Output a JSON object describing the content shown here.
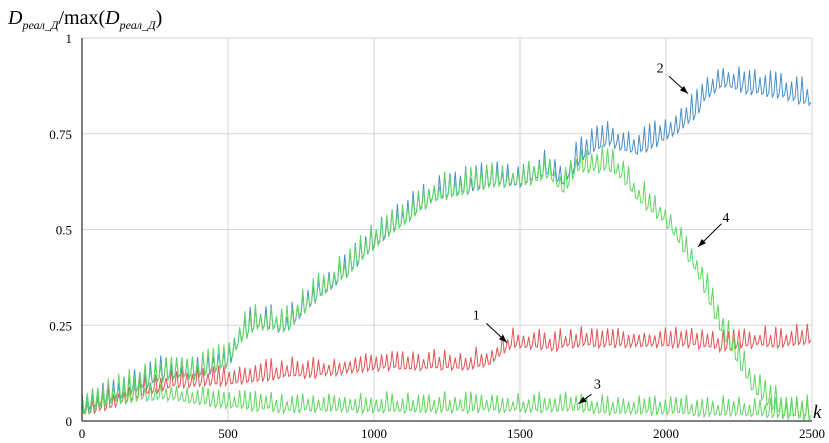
{
  "chart_data": {
    "type": "line",
    "ylabel": {
      "main": "D",
      "sub": "реал_Д",
      "ratio": "/max(",
      "main2": "D",
      "sub2": "реал_Д",
      "close": ")"
    },
    "xlabel": "k",
    "xlim": [
      0,
      2500
    ],
    "ylim": [
      0,
      1
    ],
    "x_ticks": [
      0,
      500,
      1000,
      1500,
      2000,
      2500
    ],
    "x_tick_labels": [
      "0",
      "500",
      "1000",
      "1500",
      "2000",
      "2500"
    ],
    "y_ticks": [
      0,
      0.25,
      0.5,
      0.75,
      1
    ],
    "y_tick_labels": [
      "0",
      "0.25",
      "0.5",
      "0.75",
      "1"
    ],
    "grid": true,
    "series": [
      {
        "label": "1",
        "color": "#e05555",
        "x": [
          0,
          100,
          200,
          300,
          400,
          500,
          600,
          700,
          800,
          900,
          1000,
          1100,
          1200,
          1300,
          1400,
          1450,
          1500,
          1600,
          1700,
          1800,
          1900,
          2000,
          2100,
          2200,
          2300,
          2400,
          2500
        ],
        "y": [
          0.02,
          0.04,
          0.07,
          0.09,
          0.1,
          0.1,
          0.11,
          0.12,
          0.12,
          0.13,
          0.14,
          0.14,
          0.14,
          0.14,
          0.15,
          0.19,
          0.2,
          0.19,
          0.2,
          0.2,
          0.2,
          0.2,
          0.2,
          0.19,
          0.2,
          0.2,
          0.21
        ],
        "amp": 0.035
      },
      {
        "label": "2",
        "color": "#4a90c8",
        "x": [
          0,
          100,
          200,
          300,
          400,
          500,
          550,
          600,
          700,
          800,
          900,
          1000,
          1100,
          1200,
          1300,
          1400,
          1500,
          1600,
          1650,
          1700,
          1800,
          1850,
          1900,
          2000,
          2100,
          2150,
          2200,
          2300,
          2400,
          2500
        ],
        "y": [
          0.03,
          0.06,
          0.09,
          0.12,
          0.12,
          0.15,
          0.22,
          0.25,
          0.24,
          0.32,
          0.38,
          0.46,
          0.52,
          0.58,
          0.6,
          0.62,
          0.62,
          0.65,
          0.62,
          0.68,
          0.73,
          0.71,
          0.7,
          0.74,
          0.8,
          0.86,
          0.88,
          0.86,
          0.85,
          0.83
        ],
        "amp": 0.045
      },
      {
        "label": "3",
        "color": "#5fd65f",
        "x": [
          0,
          100,
          200,
          300,
          400,
          500,
          600,
          700,
          800,
          900,
          1000,
          1100,
          1200,
          1300,
          1400,
          1500,
          1600,
          1700,
          1800,
          1900,
          2000,
          2100,
          2200,
          2300,
          2400,
          2500
        ],
        "y": [
          0.02,
          0.05,
          0.06,
          0.06,
          0.05,
          0.04,
          0.035,
          0.03,
          0.03,
          0.03,
          0.03,
          0.03,
          0.03,
          0.03,
          0.03,
          0.03,
          0.03,
          0.03,
          0.025,
          0.025,
          0.025,
          0.02,
          0.02,
          0.02,
          0.015,
          0.015
        ],
        "amp": 0.035
      },
      {
        "label": "4",
        "color": "#5fd65f",
        "x": [
          0,
          100,
          200,
          300,
          400,
          500,
          550,
          600,
          700,
          800,
          900,
          1000,
          1100,
          1200,
          1300,
          1400,
          1500,
          1600,
          1650,
          1700,
          1800,
          1850,
          1900,
          2000,
          2050,
          2100,
          2200,
          2300,
          2400,
          2500
        ],
        "y": [
          0.03,
          0.06,
          0.09,
          0.12,
          0.12,
          0.15,
          0.22,
          0.25,
          0.24,
          0.32,
          0.38,
          0.46,
          0.52,
          0.58,
          0.6,
          0.62,
          0.62,
          0.64,
          0.6,
          0.66,
          0.66,
          0.64,
          0.58,
          0.52,
          0.46,
          0.4,
          0.22,
          0.08,
          0.02,
          0.01
        ],
        "amp": 0.045
      }
    ]
  }
}
